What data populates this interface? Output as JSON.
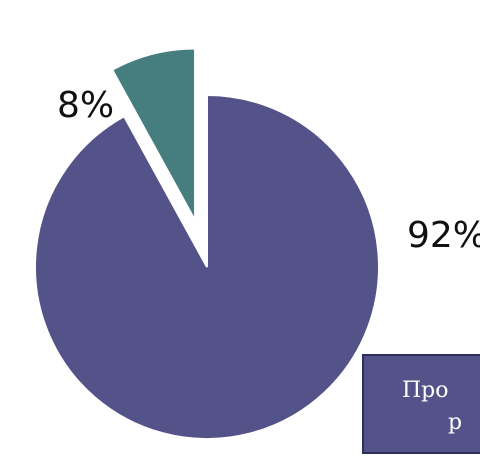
{
  "chart_data": {
    "type": "pie",
    "slices": [
      {
        "label": "92%",
        "value": 92,
        "color": "#535389"
      },
      {
        "label": "8%",
        "value": 8,
        "color": "#467e80"
      }
    ],
    "exploded_slice": "8%",
    "legend": {
      "line1": "Про",
      "line2": "р"
    }
  }
}
